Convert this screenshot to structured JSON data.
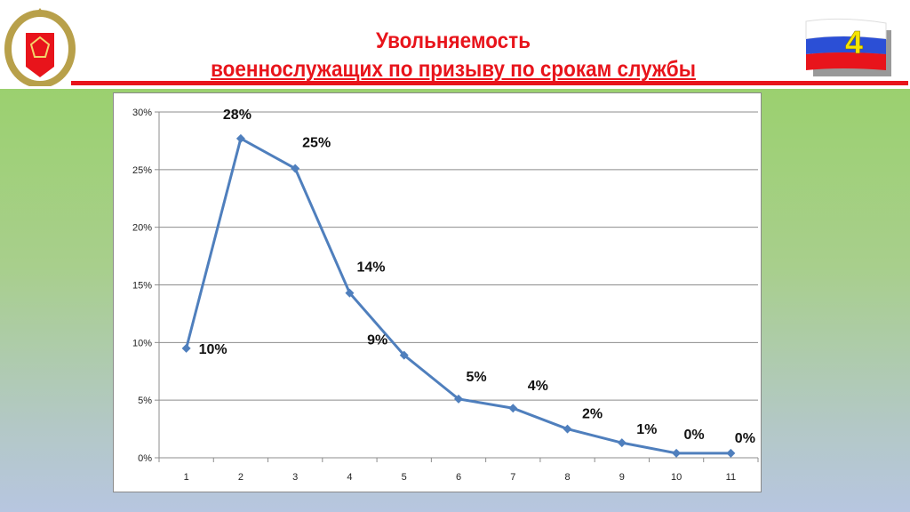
{
  "header": {
    "title_line1": "Увольняемость",
    "title_line2": "военнослужащих по призыву по срокам службы",
    "slide_number": "4"
  },
  "colors": {
    "title": "#e8141b",
    "series": "#4f7fbd",
    "flag": [
      "#ffffff",
      "#2b4fd6",
      "#e8141b"
    ]
  },
  "chart_data": {
    "type": "line",
    "title": "",
    "xlabel": "",
    "ylabel": "",
    "x": [
      1,
      2,
      3,
      4,
      5,
      6,
      7,
      8,
      9,
      10,
      11
    ],
    "series": [
      {
        "values": [
          9.5,
          27.7,
          25.1,
          14.3,
          8.9,
          5.1,
          4.3,
          2.5,
          1.3,
          0.4,
          0.4
        ],
        "data_labels": [
          "10%",
          "28%",
          "25%",
          "14%",
          "9%",
          "5%",
          "4%",
          "2%",
          "1%",
          "0%",
          "0%"
        ]
      }
    ],
    "ylim": [
      0,
      30
    ],
    "y_ticks": [
      "0%",
      "5%",
      "10%",
      "15%",
      "20%",
      "25%",
      "30%"
    ],
    "x_ticks": [
      "1",
      "2",
      "3",
      "4",
      "5",
      "6",
      "7",
      "8",
      "9",
      "10",
      "11"
    ],
    "grid": true,
    "legend": "none",
    "marker": "diamond"
  }
}
